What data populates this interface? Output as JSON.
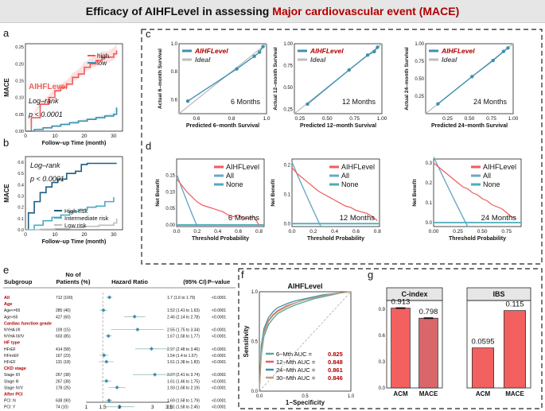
{
  "title": {
    "main": "Efficacy of AIHFLevel in assessing",
    "highlight": "Major cardiovascular event (MACE)"
  },
  "panel_letters": {
    "a": "a",
    "b": "b",
    "c": "c",
    "d": "d",
    "e": "e",
    "f": "f",
    "g": "g"
  },
  "colors": {
    "red": "#f05b5b",
    "blue": "#3d90ae",
    "teal": "#4aaebd",
    "gray": "#bdbdbd",
    "navy": "#1a5d84",
    "darkred": "#b00000"
  },
  "chart_data": [
    {
      "id": "a",
      "type": "line",
      "ylabel": "MACE",
      "xlabel": "Follow–up Time (month)",
      "xticks": [
        "0",
        "10",
        "20",
        "30"
      ],
      "yticks": [
        "0.00",
        "0.05",
        "0.10",
        "0.15",
        "0.20",
        "0.25"
      ],
      "legend": [
        "high",
        "low"
      ],
      "annotations": [
        "AIHFLevel",
        "Log–rank",
        "p < 0.0001"
      ],
      "xlim": [
        0,
        33
      ],
      "ylim": [
        0,
        0.26
      ],
      "series": [
        {
          "name": "high",
          "x": [
            0,
            2,
            5,
            8,
            10,
            12,
            14,
            16,
            18,
            20,
            22,
            24,
            26,
            28,
            30,
            31
          ],
          "y": [
            0,
            0.04,
            0.08,
            0.1,
            0.12,
            0.13,
            0.14,
            0.16,
            0.17,
            0.19,
            0.2,
            0.21,
            0.22,
            0.22,
            0.23,
            0.24
          ]
        },
        {
          "name": "low",
          "x": [
            0,
            3,
            6,
            9,
            12,
            15,
            18,
            21,
            24,
            27,
            30,
            31
          ],
          "y": [
            0,
            0.005,
            0.01,
            0.015,
            0.02,
            0.025,
            0.03,
            0.035,
            0.04,
            0.045,
            0.05,
            0.07
          ]
        }
      ]
    },
    {
      "id": "b",
      "type": "line",
      "ylabel": "MACE",
      "xlabel": "Follow–up Time (month)",
      "xticks": [
        "0",
        "10",
        "20",
        "30"
      ],
      "yticks": [
        "0.0",
        "0.1",
        "0.2",
        "0.3",
        "0.4",
        "0.5",
        "0.6"
      ],
      "legend": [
        "High risk",
        "Intermediate risk",
        "Low risk"
      ],
      "annotations": [
        "Log–rank",
        "p < 0.0001"
      ],
      "xlim": [
        0,
        33
      ],
      "ylim": [
        0,
        0.65
      ],
      "series": [
        {
          "name": "High risk",
          "x": [
            0,
            1,
            3,
            5,
            7,
            9,
            11,
            14,
            17,
            19,
            21,
            31
          ],
          "y": [
            0,
            0.15,
            0.25,
            0.33,
            0.38,
            0.42,
            0.45,
            0.5,
            0.52,
            0.58,
            0.59,
            0.59
          ]
        },
        {
          "name": "Intermediate risk",
          "x": [
            0,
            3,
            6,
            9,
            12,
            15,
            18,
            21,
            24,
            27,
            30
          ],
          "y": [
            0,
            0.04,
            0.08,
            0.11,
            0.13,
            0.16,
            0.18,
            0.2,
            0.21,
            0.25,
            0.29
          ]
        },
        {
          "name": "Low risk",
          "x": [
            0,
            5,
            10,
            15,
            20,
            25,
            30,
            31
          ],
          "y": [
            0,
            0.005,
            0.01,
            0.02,
            0.03,
            0.04,
            0.06,
            0.1
          ]
        }
      ]
    },
    {
      "id": "c",
      "type": "line",
      "legend": [
        "AIHFLevel",
        "Ideal"
      ],
      "plots": [
        {
          "ylabel": "Actual 6–month Survival",
          "xlabel": "Predicted 6–month Survival",
          "period": "6 Months",
          "xlim": [
            0.5,
            1.0
          ],
          "ylim": [
            0.5,
            1.0
          ],
          "xticks": [
            "0.6",
            "0.8",
            "1.0"
          ],
          "yticks": [
            "0.6",
            "0.8",
            "1.0"
          ],
          "x": [
            0.55,
            0.83,
            0.93,
            0.96,
            0.98
          ],
          "y": [
            0.59,
            0.82,
            0.91,
            0.94,
            0.98
          ]
        },
        {
          "ylabel": "Actual 12–month Survival",
          "xlabel": "Predicted 12–month Survival",
          "period": "12 Months",
          "xlim": [
            0.2,
            1.0
          ],
          "ylim": [
            0.2,
            1.0
          ],
          "xticks": [
            "0.25",
            "0.50",
            "0.75",
            "1.00"
          ],
          "yticks": [
            "0.25",
            "0.50",
            "0.75",
            "1.00"
          ],
          "x": [
            0.32,
            0.7,
            0.87,
            0.93,
            0.96
          ],
          "y": [
            0.31,
            0.7,
            0.87,
            0.91,
            0.96
          ]
        },
        {
          "ylabel": "Actual 24–month Survival",
          "xlabel": "Predicted 24–month Survival",
          "period": "24 Months",
          "xlim": [
            0,
            1.0
          ],
          "ylim": [
            0,
            1.0
          ],
          "xticks": [
            "0.25",
            "0.50",
            "0.75",
            "1.00"
          ],
          "yticks": [
            "0.25",
            "0.50",
            "0.75",
            "1.00"
          ],
          "x": [
            0.14,
            0.53,
            0.77,
            0.89,
            0.94
          ],
          "y": [
            0.14,
            0.53,
            0.76,
            0.89,
            0.94
          ]
        }
      ]
    },
    {
      "id": "d",
      "type": "line",
      "legend": [
        "AIHFLevel",
        "All",
        "None"
      ],
      "plots": [
        {
          "ylabel": "Net Benefit",
          "xlabel": "Threshold Probability",
          "period": "6 Months",
          "xlim": [
            0,
            0.85
          ],
          "ylim": [
            -0.005,
            0.2
          ],
          "xticks": [
            "0.0",
            "0.2",
            "0.4",
            "0.6",
            "0.8"
          ],
          "yticks": [
            "0.00",
            "0.05",
            "0.10",
            "0.15"
          ],
          "all_end": 0.2,
          "model_x": [
            0,
            0.05,
            0.1,
            0.15,
            0.2,
            0.25,
            0.3,
            0.35,
            0.4,
            0.45,
            0.5,
            0.55,
            0.6,
            0.65,
            0.7,
            0.75,
            0.8
          ],
          "model_y": [
            0.14,
            0.12,
            0.1,
            0.085,
            0.07,
            0.06,
            0.055,
            0.05,
            0.045,
            0.04,
            0.03,
            0.025,
            0.03,
            0.02,
            0.02,
            0.025,
            0.0
          ]
        },
        {
          "ylabel": "Net Benefit",
          "xlabel": "Threshold Probability",
          "period": "12 Months",
          "xlim": [
            0,
            0.82
          ],
          "ylim": [
            -0.01,
            0.22
          ],
          "xticks": [
            "0.0",
            "0.2",
            "0.4",
            "0.6",
            "0.8"
          ],
          "yticks": [
            "0.0",
            "0.1",
            "0.2"
          ],
          "all_end": 0.27,
          "model_x": [
            0,
            0.05,
            0.1,
            0.15,
            0.2,
            0.25,
            0.3,
            0.35,
            0.4,
            0.45,
            0.5,
            0.55,
            0.6,
            0.65,
            0.7,
            0.75,
            0.8
          ],
          "model_y": [
            0.19,
            0.17,
            0.155,
            0.14,
            0.125,
            0.11,
            0.1,
            0.09,
            0.08,
            0.07,
            0.06,
            0.055,
            0.045,
            0.04,
            0.035,
            0.025,
            0.01
          ]
        },
        {
          "ylabel": "Net Benefit",
          "xlabel": "Threshold Probability",
          "period": "24 Months",
          "xlim": [
            0,
            0.9
          ],
          "ylim": [
            -0.02,
            0.32
          ],
          "xticks": [
            "0.00",
            "0.25",
            "0.50",
            "0.75"
          ],
          "yticks": [
            "0.0",
            "0.1",
            "0.2",
            "0.3"
          ],
          "all_end": 0.35,
          "model_x": [
            0,
            0.05,
            0.1,
            0.15,
            0.2,
            0.25,
            0.3,
            0.35,
            0.4,
            0.45,
            0.5,
            0.55,
            0.6,
            0.65,
            0.7,
            0.75,
            0.8,
            0.85
          ],
          "model_y": [
            0.3,
            0.28,
            0.26,
            0.24,
            0.22,
            0.2,
            0.18,
            0.17,
            0.15,
            0.14,
            0.12,
            0.11,
            0.09,
            0.08,
            0.07,
            0.05,
            0.03,
            0.02
          ]
        }
      ]
    },
    {
      "id": "e",
      "type": "table",
      "headers": [
        "Subgroup",
        "No of",
        "Patients (%)",
        "Hazard Ratio",
        "(95% CI)",
        "P–value"
      ],
      "rows": [
        {
          "label": "All",
          "kind": "group",
          "n": "712 (100)",
          "hr": 1.7,
          "lo": 1.6,
          "hi": 1.79,
          "ci": "1.7 (1.6 to 1.79)",
          "p": "<0.0001"
        },
        {
          "label": "Age",
          "kind": "header"
        },
        {
          "label": "Age<=65",
          "kind": "item",
          "n": "285 (40)",
          "hr": 1.52,
          "lo": 1.41,
          "hi": 1.63,
          "ci": "1.52 (1.41 to 1.63)",
          "p": "<0.0001"
        },
        {
          "label": "Age>65",
          "kind": "item",
          "n": "427 (60)",
          "hr": 2.46,
          "lo": 2.14,
          "hi": 2.78,
          "ci": "2.46 (2.14 to 2.78)",
          "p": "<0.0001"
        },
        {
          "label": "Cardiac function grade",
          "kind": "header"
        },
        {
          "label": "NYHA I/II",
          "kind": "item",
          "n": "109 (15)",
          "hr": 2.55,
          "lo": 1.75,
          "hi": 3.34,
          "ci": "2.55 (1.75 to 3.34)",
          "p": "<0.0001"
        },
        {
          "label": "NYHA III/IV",
          "kind": "item",
          "n": "603 (85)",
          "hr": 1.67,
          "lo": 1.58,
          "hi": 1.77,
          "ci": "1.67 (1.58 to 1.77)",
          "p": "<0.0001"
        },
        {
          "label": "HF type",
          "kind": "header"
        },
        {
          "label": "HFrEF",
          "kind": "item",
          "n": "414 (58)",
          "hr": 2.97,
          "lo": 2.48,
          "hi": 3.46,
          "ci": "2.97 (2.48 to 3.46)",
          "p": "<0.0001"
        },
        {
          "label": "HFmrEF",
          "kind": "item",
          "n": "167 (23)",
          "hr": 1.54,
          "lo": 1.4,
          "hi": 1.67,
          "ci": "1.54 (1.4 to 1.67)",
          "p": "<0.0001"
        },
        {
          "label": "HFrEF",
          "kind": "item",
          "n": "131 (18)",
          "hr": 1.61,
          "lo": 1.38,
          "hi": 1.83,
          "ci": "1.61 (1.38 to 1.83)",
          "p": "<0.0001"
        },
        {
          "label": "CKD stage",
          "kind": "header"
        },
        {
          "label": "Stage I/II",
          "kind": "item",
          "n": "267 (38)",
          "hr": 3.07,
          "lo": 2.41,
          "hi": 3.74,
          "ci": "3.07 (2.41 to 3.74)",
          "p": "<0.0001"
        },
        {
          "label": "Stage III",
          "kind": "item",
          "n": "267 (38)",
          "hr": 1.61,
          "lo": 1.46,
          "hi": 1.75,
          "ci": "1.61 (1.46 to 1.75)",
          "p": "<0.0001"
        },
        {
          "label": "Stage IV/V",
          "kind": "item",
          "n": "178 (25)",
          "hr": 1.93,
          "lo": 1.68,
          "hi": 2.19,
          "ci": "1.93 (1.68 to 2.19)",
          "p": "<0.0001"
        },
        {
          "label": "After PCI",
          "kind": "header"
        },
        {
          "label": "PCI: N",
          "kind": "item",
          "n": "638 (90)",
          "hr": 1.69,
          "lo": 1.58,
          "hi": 1.79,
          "ci": "1.69 (1.58 to 1.79)",
          "p": "<0.0001"
        },
        {
          "label": "PCI: Y",
          "kind": "item",
          "n": "74 (10)",
          "hr": 2.01,
          "lo": 1.58,
          "hi": 2.45,
          "ci": "2.01 (1.58 to 2.45)",
          "p": "<0.0001"
        }
      ],
      "xticks": [
        "1",
        "1.5",
        "2",
        "3",
        "3.5"
      ],
      "xlim": [
        0.8,
        3.8
      ],
      "reference": 1.5
    },
    {
      "id": "f",
      "type": "line",
      "title": "AIHFLevel",
      "xlabel": "1−Specificity",
      "ylabel": "Sensitivity",
      "xticks": [
        "0.0",
        "0.5",
        "1.0"
      ],
      "yticks": [
        "0.0",
        "0.5",
        "1.0"
      ],
      "legend": [
        {
          "label": "6−Mth AUC = ",
          "auc": "0.825"
        },
        {
          "label": "12−Mth AUC = ",
          "auc": "0.848"
        },
        {
          "label": "24−Mth AUC = ",
          "auc": "0.861"
        },
        {
          "label": "30−Mth AUC = ",
          "auc": "0.846"
        }
      ],
      "series": [
        {
          "name": "6−Mth",
          "x": [
            0,
            0.02,
            0.05,
            0.1,
            0.15,
            0.2,
            0.3,
            0.4,
            0.5,
            0.6,
            0.7,
            0.8,
            0.9,
            1
          ],
          "y": [
            0,
            0.35,
            0.55,
            0.67,
            0.73,
            0.78,
            0.83,
            0.87,
            0.9,
            0.93,
            0.95,
            0.97,
            0.99,
            1
          ]
        },
        {
          "name": "12−Mth",
          "x": [
            0,
            0.02,
            0.05,
            0.1,
            0.15,
            0.2,
            0.3,
            0.4,
            0.5,
            0.6,
            0.7,
            0.8,
            0.9,
            1
          ],
          "y": [
            0,
            0.4,
            0.6,
            0.71,
            0.77,
            0.81,
            0.86,
            0.89,
            0.92,
            0.94,
            0.96,
            0.98,
            0.99,
            1
          ]
        },
        {
          "name": "24−Mth",
          "x": [
            0,
            0.02,
            0.05,
            0.1,
            0.15,
            0.2,
            0.3,
            0.4,
            0.5,
            0.6,
            0.7,
            0.8,
            0.9,
            1
          ],
          "y": [
            0,
            0.45,
            0.63,
            0.74,
            0.8,
            0.84,
            0.88,
            0.91,
            0.93,
            0.95,
            0.97,
            0.98,
            0.99,
            1
          ]
        },
        {
          "name": "30−Mth",
          "x": [
            0,
            0.02,
            0.05,
            0.1,
            0.15,
            0.2,
            0.3,
            0.4,
            0.5,
            0.6,
            0.7,
            0.8,
            0.9,
            1
          ],
          "y": [
            0,
            0.38,
            0.58,
            0.7,
            0.76,
            0.8,
            0.85,
            0.89,
            0.92,
            0.94,
            0.96,
            0.98,
            0.99,
            1
          ]
        }
      ]
    },
    {
      "id": "g1",
      "type": "bar",
      "title": "C-index",
      "categories": [
        "ACM",
        "MACE"
      ],
      "values": [
        0.913,
        0.798
      ],
      "labels": [
        "0.913",
        "0.798"
      ],
      "yticks": [
        "0.0",
        "0.3",
        "0.6",
        "0.9"
      ],
      "ylim": [
        0,
        1.0
      ]
    },
    {
      "id": "g2",
      "type": "bar",
      "title": "IBS",
      "categories": [
        "ACM",
        "MACE"
      ],
      "values": [
        0.0595,
        0.115
      ],
      "labels": [
        "0.0595",
        "0.115"
      ],
      "ylim": [
        0,
        0.13
      ]
    }
  ]
}
